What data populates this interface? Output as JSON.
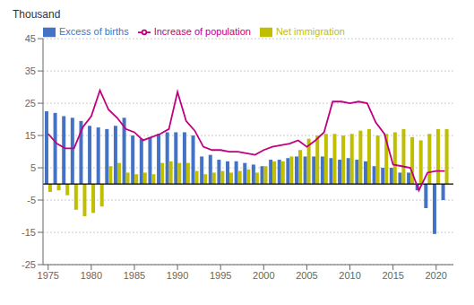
{
  "chart_data": {
    "type": "bar",
    "ylabel": "Thousand",
    "x": [
      1975,
      1976,
      1977,
      1978,
      1979,
      1980,
      1981,
      1982,
      1983,
      1984,
      1985,
      1986,
      1987,
      1988,
      1989,
      1990,
      1991,
      1992,
      1993,
      1994,
      1995,
      1996,
      1997,
      1998,
      1999,
      2000,
      2001,
      2002,
      2003,
      2004,
      2005,
      2006,
      2007,
      2008,
      2009,
      2010,
      2011,
      2012,
      2013,
      2014,
      2015,
      2016,
      2017,
      2018,
      2019,
      2020,
      2021
    ],
    "series": [
      {
        "name": "Excess of births",
        "type": "bar",
        "color": "#4472C4",
        "values": [
          22.5,
          22.0,
          21.0,
          20.5,
          19.5,
          18.0,
          17.5,
          17.0,
          18.0,
          20.5,
          15.0,
          14.0,
          14.5,
          15.5,
          16.0,
          16.0,
          16.0,
          15.0,
          8.5,
          9.0,
          7.5,
          7.0,
          7.0,
          6.5,
          6.0,
          5.5,
          7.5,
          7.5,
          8.0,
          8.5,
          8.5,
          8.5,
          8.5,
          8.0,
          7.5,
          8.0,
          7.5,
          7.0,
          5.5,
          5.0,
          5.0,
          3.5,
          3.5,
          -2.0,
          -7.5,
          -15.5,
          -5.0
        ]
      },
      {
        "name": "Net immigration",
        "type": "bar",
        "color": "#BFBF00",
        "values": [
          -2.5,
          -2.0,
          -3.5,
          -8.0,
          -10.0,
          -9.0,
          -7.0,
          5.5,
          6.5,
          3.5,
          3.0,
          3.5,
          3.0,
          6.5,
          7.0,
          6.5,
          6.5,
          4.0,
          3.0,
          3.5,
          4.0,
          3.5,
          4.0,
          4.5,
          3.5,
          5.5,
          7.0,
          7.0,
          8.5,
          10.5,
          14.0,
          15.0,
          15.5,
          15.5,
          15.0,
          15.5,
          16.5,
          17.0,
          15.0,
          15.5,
          16.0,
          17.0,
          14.5,
          13.5,
          15.5,
          17.0,
          17.0
        ]
      },
      {
        "name": "Increase of population",
        "type": "line",
        "color": "#C00080",
        "values": [
          15.5,
          12.5,
          11.0,
          11.0,
          17.5,
          21.0,
          29.0,
          23.0,
          20.5,
          17.0,
          16.0,
          13.5,
          14.5,
          15.5,
          17.0,
          28.5,
          19.5,
          16.5,
          11.5,
          10.5,
          10.5,
          10.0,
          10.0,
          9.5,
          9.0,
          10.5,
          11.5,
          12.0,
          12.5,
          13.5,
          11.5,
          13.5,
          16.0,
          25.5,
          25.5,
          25.0,
          25.5,
          25.0,
          19.0,
          15.5,
          6.0,
          5.5,
          5.0,
          -2.0,
          3.5,
          4.0,
          4.0
        ]
      }
    ],
    "xlim": [
      1974.4,
      2022.0
    ],
    "xticks": [
      1975,
      1980,
      1985,
      1990,
      1995,
      2000,
      2005,
      2010,
      2015,
      2020
    ],
    "ylim": [
      -25,
      45
    ],
    "yticks": [
      -25,
      -15,
      -5,
      5,
      15,
      25,
      35,
      45
    ],
    "grid": true,
    "legend": "upper left"
  }
}
